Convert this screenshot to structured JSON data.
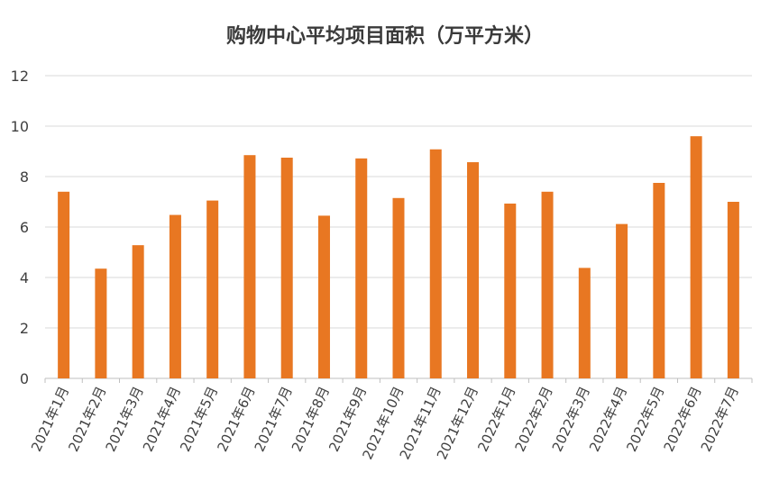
{
  "chart_data": {
    "type": "bar",
    "title": "购物中心平均项目面积（万平方米）",
    "categories": [
      "2021年1月",
      "2021年2月",
      "2021年3月",
      "2021年4月",
      "2021年5月",
      "2021年6月",
      "2021年7月",
      "2021年8月",
      "2021年9月",
      "2021年10月",
      "2021年11月",
      "2021年12月",
      "2022年1月",
      "2022年2月",
      "2022年3月",
      "2022年4月",
      "2022年5月",
      "2022年6月",
      "2022年7月"
    ],
    "values": [
      7.4,
      4.35,
      5.28,
      6.48,
      7.05,
      8.85,
      8.75,
      6.45,
      8.72,
      7.15,
      9.08,
      8.57,
      6.93,
      7.4,
      4.38,
      6.12,
      7.75,
      9.6,
      7.0
    ],
    "ylim": [
      0,
      12
    ],
    "yticks": [
      0,
      2,
      4,
      6,
      8,
      10,
      12
    ],
    "xlabel": "",
    "ylabel": "",
    "grid": true,
    "bar_color": "#E87722",
    "grid_color": "#d9d9d9"
  }
}
